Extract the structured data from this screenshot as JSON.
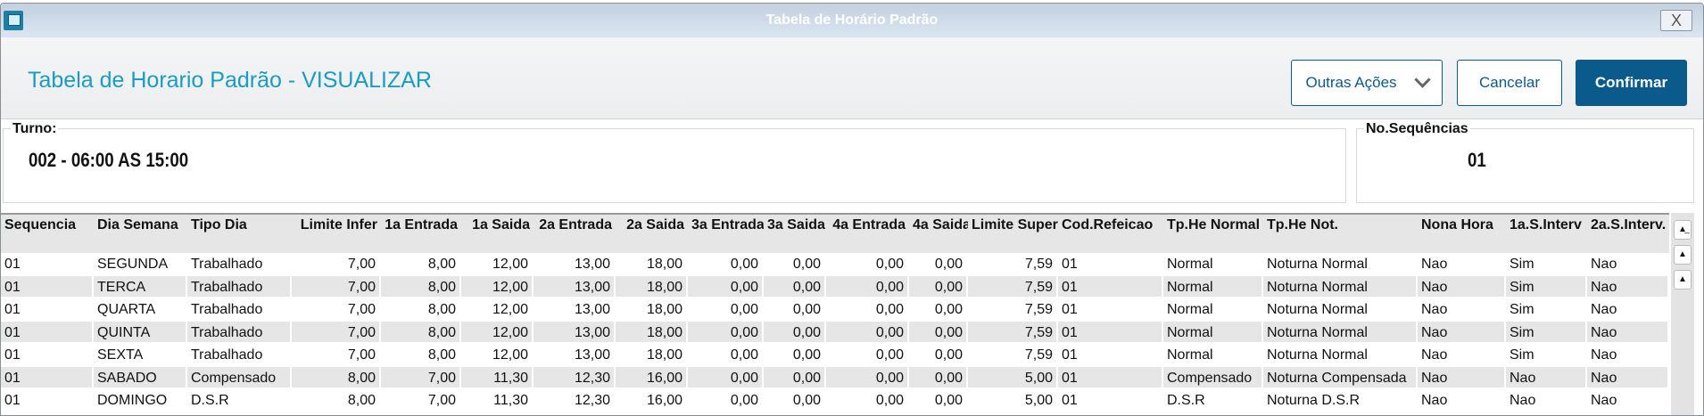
{
  "window": {
    "title": "Tabela de Horário Padrão",
    "close_label": "X"
  },
  "header": {
    "title": "Tabela de Horario Padrão - VISUALIZAR",
    "buttons": {
      "other_actions": "Outras Ações",
      "cancel": "Cancelar",
      "confirm": "Confirmar"
    },
    "accent": "#1a9cc4",
    "primary": "#0b5a8c"
  },
  "turno": {
    "label": "Turno:",
    "value": "002 - 06:00 AS 15:00"
  },
  "sequencias": {
    "label": "No.Sequências",
    "value": "01"
  },
  "table": {
    "columns": [
      "Sequencia",
      "Dia Semana",
      "Tipo Dia",
      "Limite Infer",
      "1a Entrada",
      "1a Saida",
      "2a Entrada",
      "2a Saida",
      "3a Entrada",
      "3a Saida",
      "4a Entrada",
      "4a Saida",
      "Limite Super",
      "Cod.Refeicao",
      "Tp.He Normal",
      "Tp.He Not.",
      "Nona Hora",
      "1a.S.Interv",
      "2a.S.Interv."
    ],
    "rows": [
      [
        "01",
        "SEGUNDA",
        "Trabalhado",
        "7,00",
        "8,00",
        "12,00",
        "13,00",
        "18,00",
        "0,00",
        "0,00",
        "0,00",
        "0,00",
        "7,59",
        "01",
        "Normal",
        "Noturna Normal",
        "Nao",
        "Sim",
        "Nao"
      ],
      [
        "01",
        "TERCA",
        "Trabalhado",
        "7,00",
        "8,00",
        "12,00",
        "13,00",
        "18,00",
        "0,00",
        "0,00",
        "0,00",
        "0,00",
        "7,59",
        "01",
        "Normal",
        "Noturna Normal",
        "Nao",
        "Sim",
        "Nao"
      ],
      [
        "01",
        "QUARTA",
        "Trabalhado",
        "7,00",
        "8,00",
        "12,00",
        "13,00",
        "18,00",
        "0,00",
        "0,00",
        "0,00",
        "0,00",
        "7,59",
        "01",
        "Normal",
        "Noturna Normal",
        "Nao",
        "Sim",
        "Nao"
      ],
      [
        "01",
        "QUINTA",
        "Trabalhado",
        "7,00",
        "8,00",
        "12,00",
        "13,00",
        "18,00",
        "0,00",
        "0,00",
        "0,00",
        "0,00",
        "7,59",
        "01",
        "Normal",
        "Noturna Normal",
        "Nao",
        "Sim",
        "Nao"
      ],
      [
        "01",
        "SEXTA",
        "Trabalhado",
        "7,00",
        "8,00",
        "12,00",
        "13,00",
        "18,00",
        "0,00",
        "0,00",
        "0,00",
        "0,00",
        "7,59",
        "01",
        "Normal",
        "Noturna Normal",
        "Nao",
        "Sim",
        "Nao"
      ],
      [
        "01",
        "SABADO",
        "Compensado",
        "8,00",
        "7,00",
        "11,30",
        "12,30",
        "16,00",
        "0,00",
        "0,00",
        "0,00",
        "0,00",
        "5,00",
        "01",
        "Compensado",
        "Noturna Compensada",
        "Nao",
        "Nao",
        "Nao"
      ],
      [
        "01",
        "DOMINGO",
        "D.S.R",
        "8,00",
        "7,00",
        "11,30",
        "12,30",
        "16,00",
        "0,00",
        "0,00",
        "0,00",
        "0,00",
        "5,00",
        "01",
        "D.S.R",
        "Noturna D.S.R",
        "Nao",
        "Nao",
        "Nao"
      ]
    ]
  },
  "scroll": {
    "top_icon": "scroll-top-icon",
    "page_up_icon": "page-up-icon",
    "up_icon": "up-icon"
  }
}
